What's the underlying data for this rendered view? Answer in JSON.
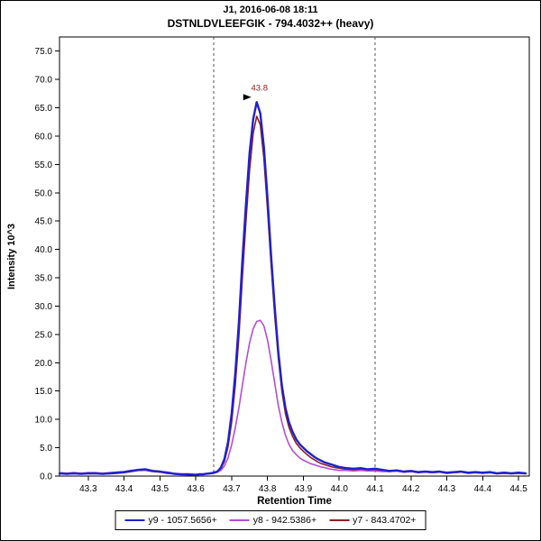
{
  "header": {
    "line1": "J1, 2016-06-08 18:11",
    "line2": "DSTNLDVLEEFGIK - 794.4032++ (heavy)"
  },
  "chart_data": {
    "type": "line",
    "title": "DSTNLDVLEEFGIK - 794.4032++ (heavy)",
    "subtitle": "J1, 2016-06-08 18:11",
    "xlabel": "Retention Time",
    "ylabel": "Intensity 10^3",
    "xlim": [
      43.22,
      44.53
    ],
    "ylim": [
      0,
      77.5
    ],
    "xticks": [
      43.3,
      43.4,
      43.5,
      43.6,
      43.7,
      43.8,
      43.9,
      44.0,
      44.1,
      44.2,
      44.3,
      44.4,
      44.5
    ],
    "yticks": [
      0.0,
      5.0,
      10.0,
      15.0,
      20.0,
      25.0,
      30.0,
      35.0,
      40.0,
      45.0,
      50.0,
      55.0,
      60.0,
      65.0,
      70.0,
      75.0
    ],
    "grid": false,
    "legend_position": "bottom",
    "integration_boundaries": [
      43.65,
      44.1
    ],
    "boundary_color": "#555555",
    "annotation": {
      "text": "43.8",
      "x": 43.77,
      "y": 66.0,
      "color": "#8b2020",
      "arrow_color": "#000000"
    },
    "x": [
      43.22,
      43.24,
      43.26,
      43.28,
      43.3,
      43.32,
      43.34,
      43.36,
      43.38,
      43.4,
      43.42,
      43.44,
      43.46,
      43.48,
      43.5,
      43.52,
      43.54,
      43.56,
      43.58,
      43.6,
      43.61,
      43.62,
      43.63,
      43.64,
      43.65,
      43.66,
      43.67,
      43.68,
      43.69,
      43.7,
      43.71,
      43.72,
      43.73,
      43.74,
      43.75,
      43.76,
      43.77,
      43.78,
      43.79,
      43.8,
      43.81,
      43.82,
      43.83,
      43.84,
      43.85,
      43.86,
      43.87,
      43.88,
      43.89,
      43.9,
      43.91,
      43.92,
      43.93,
      43.94,
      43.95,
      43.96,
      43.97,
      43.98,
      43.99,
      44.0,
      44.02,
      44.04,
      44.06,
      44.08,
      44.1,
      44.12,
      44.14,
      44.16,
      44.18,
      44.2,
      44.22,
      44.24,
      44.26,
      44.28,
      44.3,
      44.32,
      44.34,
      44.36,
      44.38,
      44.4,
      44.42,
      44.44,
      44.46,
      44.48,
      44.5,
      44.52
    ],
    "series": [
      {
        "name": "y9 - 1057.5656+",
        "color": "#2020d0",
        "width": 2.4,
        "values": [
          0.5,
          0.4,
          0.5,
          0.4,
          0.5,
          0.5,
          0.4,
          0.5,
          0.6,
          0.7,
          0.9,
          1.1,
          1.2,
          0.9,
          0.8,
          0.6,
          0.4,
          0.3,
          0.3,
          0.2,
          0.3,
          0.3,
          0.4,
          0.5,
          0.6,
          0.8,
          1.5,
          3.0,
          6.0,
          11.0,
          18.0,
          27.0,
          38.0,
          48.0,
          57.0,
          63.0,
          66.0,
          64.0,
          58.0,
          49.0,
          39.0,
          30.0,
          22.0,
          16.0,
          12.0,
          9.5,
          7.8,
          6.5,
          5.6,
          5.0,
          4.4,
          3.9,
          3.4,
          3.0,
          2.7,
          2.4,
          2.2,
          2.0,
          1.8,
          1.6,
          1.4,
          1.3,
          1.4,
          1.2,
          1.3,
          1.1,
          0.9,
          1.0,
          0.8,
          0.9,
          0.7,
          0.8,
          0.7,
          0.8,
          0.6,
          0.7,
          0.8,
          0.6,
          0.7,
          0.6,
          0.7,
          0.5,
          0.6,
          0.5,
          0.6,
          0.5
        ]
      },
      {
        "name": "y8 - 942.5386+",
        "color": "#b050d0",
        "width": 1.6,
        "values": [
          0.6,
          0.5,
          0.6,
          0.5,
          0.6,
          0.6,
          0.5,
          0.6,
          0.7,
          0.8,
          1.0,
          1.1,
          1.0,
          0.9,
          0.8,
          0.7,
          0.5,
          0.4,
          0.4,
          0.3,
          0.4,
          0.4,
          0.5,
          0.5,
          0.6,
          0.7,
          1.0,
          1.8,
          3.2,
          5.5,
          8.5,
          12.0,
          16.0,
          20.0,
          23.5,
          26.0,
          27.3,
          27.5,
          26.5,
          24.0,
          20.5,
          16.5,
          12.5,
          9.5,
          7.2,
          5.6,
          4.5,
          3.8,
          3.2,
          2.8,
          2.5,
          2.2,
          2.0,
          1.8,
          1.6,
          1.5,
          1.3,
          1.2,
          1.1,
          1.0,
          1.0,
          0.9,
          1.0,
          0.9,
          0.9,
          0.8,
          0.8,
          0.9,
          0.7,
          0.8,
          0.7,
          0.7,
          0.6,
          0.7,
          0.6,
          0.6,
          0.7,
          0.6,
          0.6,
          0.5,
          0.6,
          0.5,
          0.5,
          0.5,
          0.5,
          0.5
        ]
      },
      {
        "name": "y7 - 843.4702+",
        "color": "#8b2020",
        "width": 1.6,
        "values": [
          0.4,
          0.5,
          0.4,
          0.5,
          0.4,
          0.4,
          0.5,
          0.4,
          0.5,
          0.6,
          0.8,
          1.0,
          1.0,
          0.8,
          0.7,
          0.5,
          0.4,
          0.3,
          0.2,
          0.2,
          0.3,
          0.3,
          0.4,
          0.4,
          0.5,
          0.7,
          1.3,
          2.6,
          5.2,
          9.5,
          16.0,
          24.5,
          35.0,
          45.0,
          54.0,
          60.5,
          63.5,
          62.0,
          56.0,
          47.0,
          37.5,
          28.5,
          21.0,
          15.0,
          11.0,
          8.6,
          7.0,
          5.8,
          5.0,
          4.4,
          3.8,
          3.3,
          2.9,
          2.5,
          2.2,
          2.0,
          1.8,
          1.6,
          1.5,
          1.4,
          1.2,
          1.1,
          1.2,
          1.0,
          1.1,
          0.9,
          0.8,
          0.9,
          0.7,
          0.8,
          0.6,
          0.7,
          0.6,
          0.7,
          0.5,
          0.6,
          0.7,
          0.5,
          0.6,
          0.5,
          0.6,
          0.4,
          0.5,
          0.4,
          0.5,
          0.4
        ]
      }
    ]
  }
}
